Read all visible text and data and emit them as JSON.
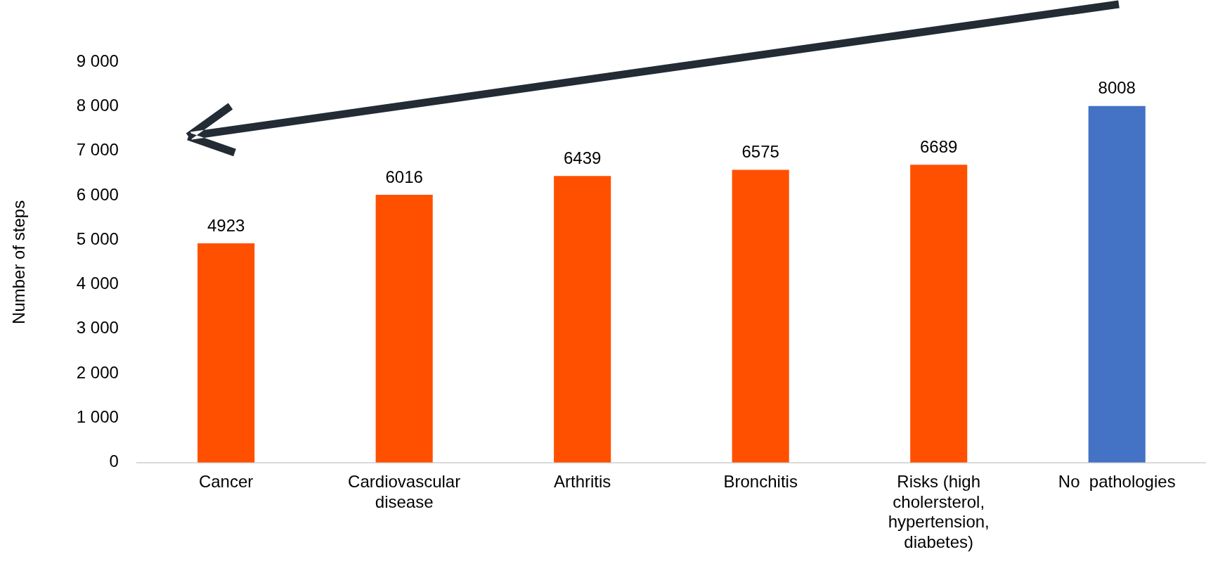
{
  "chart_data": {
    "type": "bar",
    "ylabel": "Number of steps",
    "categories": [
      "Cancer",
      "Cardiovascular disease",
      "Arthritis",
      "Bronchitis",
      "Risks (high cholersterol, hypertension, diabetes)",
      "No  pathologies"
    ],
    "values": [
      4923,
      6016,
      6439,
      6575,
      6689,
      8008
    ],
    "colors": [
      "#ff5000",
      "#ff5000",
      "#ff5000",
      "#ff5000",
      "#ff5000",
      "#4472c4"
    ],
    "ylim": [
      0,
      9000
    ],
    "yticks": [
      {
        "value": 0,
        "label": "0"
      },
      {
        "value": 1000,
        "label": "1 000"
      },
      {
        "value": 2000,
        "label": "2 000"
      },
      {
        "value": 3000,
        "label": "3 000"
      },
      {
        "value": 4000,
        "label": "4 000"
      },
      {
        "value": 5000,
        "label": "5 000"
      },
      {
        "value": 6000,
        "label": "6 000"
      },
      {
        "value": 7000,
        "label": "7 000"
      },
      {
        "value": 8000,
        "label": "8 000"
      },
      {
        "value": 9000,
        "label": "9 000"
      }
    ],
    "grid": false,
    "legend": false,
    "data_labels": true
  }
}
